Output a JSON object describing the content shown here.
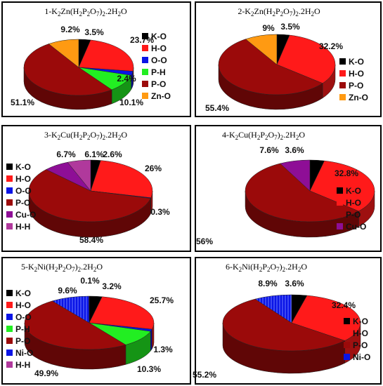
{
  "colors": {
    "K-O": "#000000",
    "H-O": "#ff1a1a",
    "O-O": "#0a14e6",
    "P-H": "#22ee22",
    "P-O": "#9b0a0a",
    "Zn-O": "#ff9a12",
    "Cu-O": "#8e0e96",
    "H-H": "#b0399c",
    "Ni-O": "#0a14e6"
  },
  "panels": [
    {
      "title": {
        "prefix": "1-K",
        "m1": "Zn(H",
        "m2": "P",
        "m3": "O",
        "m4": ")",
        "suffix": ".2H",
        "end": "O"
      }
    },
    {
      "title": {
        "prefix": "2-K",
        "m1": "Zn(H",
        "m2": "P",
        "m3": "O",
        "m4": ")",
        "suffix": ".2H",
        "end": "O"
      }
    },
    {
      "title": {
        "prefix": "3-K",
        "m1": "Cu(H",
        "m2": "P",
        "m3": "O",
        "m4": ")",
        "suffix": ".2H",
        "end": "O"
      }
    },
    {
      "title": {
        "prefix": "4-K",
        "m1": "Cu(H",
        "m2": "P",
        "m3": "O",
        "m4": ")",
        "suffix": ".2H",
        "end": "O"
      }
    },
    {
      "title": {
        "prefix": "5-K",
        "m1": "Ni(H",
        "m2": "P",
        "m3": "O",
        "m4": ")",
        "suffix": ".2H",
        "end": "O"
      }
    },
    {
      "title": {
        "prefix": "6-K",
        "m1": "Ni(H",
        "m2": "P",
        "m3": "O",
        "m4": ")",
        "suffix": ".2H",
        "end": "O"
      }
    }
  ],
  "chart_data": [
    {
      "type": "pie",
      "title": "1-K2Zn(H2P2O7)2.2H2O",
      "legend": [
        "K-O",
        "H-O",
        "O-O",
        "P-H",
        "P-O",
        "Zn-O"
      ],
      "categories": [
        "K-O",
        "H-O",
        "O-O",
        "P-H",
        "P-O",
        "Zn-O"
      ],
      "values": [
        3.5,
        23.7,
        2.4,
        10.1,
        51.1,
        9.2
      ],
      "labels": [
        "3.5%",
        "23.7%",
        "2.4%",
        "10.1%",
        "51.1%",
        "9.2%"
      ]
    },
    {
      "type": "pie",
      "title": "2-K2Zn(H2P2O7)2.2H2O",
      "legend": [
        "K-O",
        "H-O",
        "P-O",
        "Zn-O"
      ],
      "categories": [
        "K-O",
        "H-O",
        "P-O",
        "Zn-O"
      ],
      "values": [
        3.5,
        32.2,
        55.4,
        9
      ],
      "labels": [
        "3.5%",
        "32.2%",
        "55.4%",
        "9%"
      ]
    },
    {
      "type": "pie",
      "title": "3-K2Cu(H2P2O7)2.2H2O",
      "legend": [
        "K-O",
        "H-O",
        "O-O",
        "P-O",
        "Cu-O",
        "H-H"
      ],
      "categories": [
        "K-O",
        "H-O",
        "O-O",
        "P-O",
        "Cu-O",
        "H-H"
      ],
      "values": [
        2.6,
        26,
        0.3,
        58.4,
        6.7,
        6.1
      ],
      "labels": [
        "2.6%",
        "26%",
        "0.3%",
        "58.4%",
        "6.7%",
        "6.1%"
      ]
    },
    {
      "type": "pie",
      "title": "4-K2Cu(H2P2O7)2.2H2O",
      "legend": [
        "K-O",
        "H-O",
        "P-O",
        "Cu-O"
      ],
      "categories": [
        "K-O",
        "H-O",
        "P-O",
        "Cu-O"
      ],
      "values": [
        3.6,
        32.8,
        56,
        7.6
      ],
      "labels": [
        "3.6%",
        "32.8%",
        "56%",
        "7.6%"
      ]
    },
    {
      "type": "pie",
      "title": "5-K2Ni(H2P2O7)2.2H2O",
      "legend": [
        "K-O",
        "H-O",
        "O-O",
        "P-H",
        "P-O",
        "Ni-O",
        "H-H"
      ],
      "categories": [
        "K-O",
        "H-O",
        "O-O",
        "P-H",
        "P-O",
        "Ni-O",
        "H-H"
      ],
      "values": [
        3.2,
        25.7,
        1.3,
        10.3,
        49.9,
        9.6,
        0.1
      ],
      "labels": [
        "3.2%",
        "25.7%",
        "1.3%",
        "10.3%",
        "49.9%",
        "9.6%",
        "0.1%"
      ]
    },
    {
      "type": "pie",
      "title": "6-K2Ni(H2P2O7)2.2H2O",
      "legend": [
        "K-O",
        "H-O",
        "P-O",
        "Ni-O"
      ],
      "categories": [
        "K-O",
        "H-O",
        "P-O",
        "Ni-O"
      ],
      "values": [
        3.6,
        32.4,
        55.2,
        8.9
      ],
      "labels": [
        "3.6%",
        "32.4%",
        "55.2%",
        "8.9%"
      ]
    }
  ]
}
